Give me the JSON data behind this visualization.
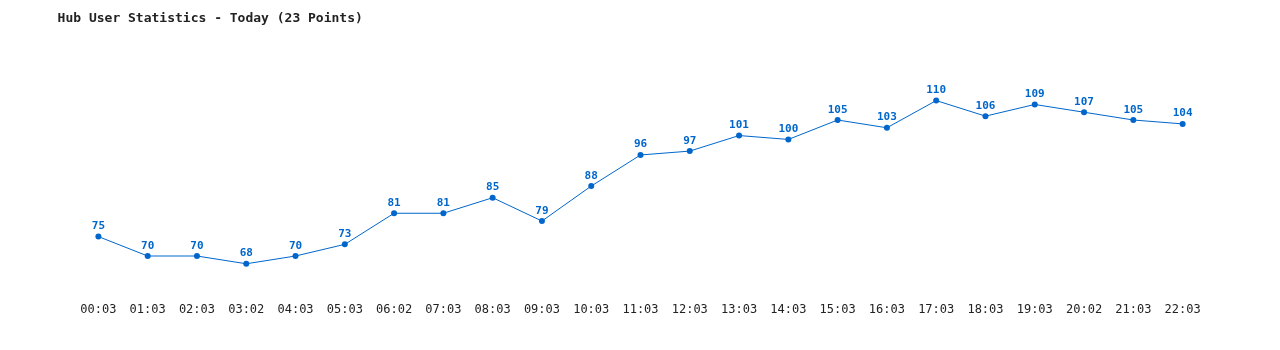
{
  "chart_data": {
    "type": "line",
    "title": "Hub User Statistics - Today (23 Points)",
    "categories": [
      "00:03",
      "01:03",
      "02:03",
      "03:02",
      "04:03",
      "05:03",
      "06:02",
      "07:03",
      "08:03",
      "09:03",
      "10:03",
      "11:03",
      "12:03",
      "13:03",
      "14:03",
      "15:03",
      "16:03",
      "17:03",
      "18:03",
      "19:03",
      "20:02",
      "21:03",
      "22:03"
    ],
    "series": [
      {
        "color": "#0066cc",
        "values": [
          75,
          70,
          70,
          68,
          70,
          73,
          81,
          81,
          85,
          79,
          88,
          96,
          97,
          101,
          100,
          105,
          103,
          110,
          106,
          109,
          107,
          105,
          104
        ]
      }
    ],
    "data_labels": true,
    "marker": "circle",
    "line_style": "solid",
    "tick_labels": "x"
  }
}
